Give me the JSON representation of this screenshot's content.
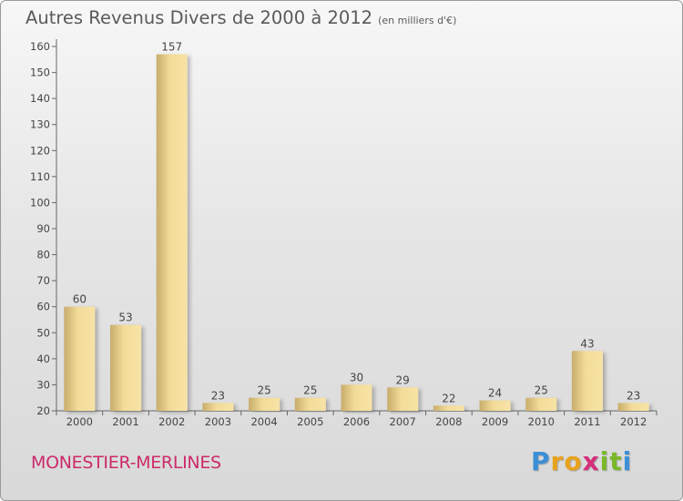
{
  "chart_data": {
    "type": "bar",
    "title": "Autres Revenus Divers de 2000 à 2012",
    "subtitle": "(en milliers d'€)",
    "categories": [
      "2000",
      "2001",
      "2002",
      "2003",
      "2004",
      "2005",
      "2006",
      "2007",
      "2008",
      "2009",
      "2010",
      "2011",
      "2012"
    ],
    "values": [
      60,
      53,
      157,
      23,
      25,
      25,
      30,
      29,
      22,
      24,
      25,
      43,
      23
    ],
    "data_labels": [
      "60",
      "53",
      "157",
      "23",
      "25",
      "25",
      "30",
      "29",
      "22",
      "24",
      "25",
      "43",
      "23"
    ],
    "yticks": [
      "20",
      "30",
      "40",
      "50",
      "60",
      "70",
      "80",
      "90",
      "100",
      "110",
      "120",
      "130",
      "140",
      "150",
      "160"
    ],
    "ylim": [
      20,
      160
    ],
    "xlabel": "",
    "ylabel": "",
    "grid": false,
    "legend": "none",
    "colors": {
      "bar_light": "#f7e3a6",
      "bar_dark": "#c8ad6b",
      "axis": "#666666",
      "text": "#444444"
    }
  },
  "footer": {
    "commune": "MONESTIER-MERLINES",
    "logo_letters": [
      "P",
      "r",
      "o",
      "x",
      "i",
      "t",
      "i"
    ],
    "logo_colors": [
      "#3b8fd6",
      "#e8a21d",
      "#e8a21d",
      "#d62f7a",
      "#79b829",
      "#79b829",
      "#3b8fd6"
    ]
  }
}
